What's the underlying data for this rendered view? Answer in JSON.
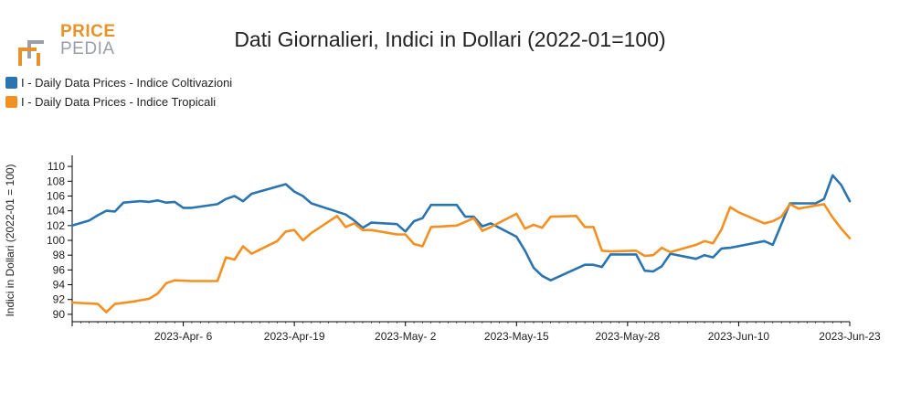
{
  "header": {
    "logo_line1": "PRICE",
    "logo_line2": "PEDIA",
    "title": "Dati Giornalieri, Indici in Dollari (2022-01=100)"
  },
  "colors": {
    "coltivazioni": "#2a75b0",
    "tropicali": "#f39021",
    "logo_orange": "#e8922a",
    "logo_grey": "#9aa0a6"
  },
  "chart_data": {
    "type": "line",
    "title": "Dati Giornalieri, Indici in Dollari (2022-01=100)",
    "xlabel": "",
    "ylabel": "Indici in Dollari (2022-01 = 100)",
    "ylim": [
      89,
      111
    ],
    "yticks": [
      90,
      92,
      94,
      96,
      98,
      100,
      102,
      104,
      106,
      108,
      110
    ],
    "xlim": [
      "2023-03-24",
      "2023-06-23"
    ],
    "xticks": [
      "2023-04-06",
      "2023-04-19",
      "2023-05-02",
      "2023-05-15",
      "2023-05-28",
      "2023-06-10",
      "2023-06-23"
    ],
    "xtick_labels": [
      "2023-Apr- 6",
      "2023-Apr-19",
      "2023-May- 2",
      "2023-May-15",
      "2023-May-28",
      "2023-Jun-10",
      "2023-Jun-23"
    ],
    "legend_position": "top-left",
    "series": [
      {
        "name": "I - Daily Data Prices - Indice Coltivazioni",
        "color": "#2a75b0",
        "points": [
          [
            "2023-03-24",
            102.0
          ],
          [
            "2023-03-26",
            102.7
          ],
          [
            "2023-03-27",
            103.4
          ],
          [
            "2023-03-28",
            104.0
          ],
          [
            "2023-03-29",
            103.9
          ],
          [
            "2023-03-30",
            105.1
          ],
          [
            "2023-04-01",
            105.3
          ],
          [
            "2023-04-02",
            105.2
          ],
          [
            "2023-04-03",
            105.4
          ],
          [
            "2023-04-04",
            105.1
          ],
          [
            "2023-04-05",
            105.2
          ],
          [
            "2023-04-06",
            104.4
          ],
          [
            "2023-04-07",
            104.4
          ],
          [
            "2023-04-10",
            104.9
          ],
          [
            "2023-04-11",
            105.6
          ],
          [
            "2023-04-12",
            106.0
          ],
          [
            "2023-04-13",
            105.3
          ],
          [
            "2023-04-14",
            106.3
          ],
          [
            "2023-04-18",
            107.6
          ],
          [
            "2023-04-19",
            106.6
          ],
          [
            "2023-04-20",
            106.0
          ],
          [
            "2023-04-21",
            105.0
          ],
          [
            "2023-04-25",
            103.5
          ],
          [
            "2023-04-26",
            102.7
          ],
          [
            "2023-04-27",
            101.7
          ],
          [
            "2023-04-28",
            102.4
          ],
          [
            "2023-05-01",
            102.2
          ],
          [
            "2023-05-02",
            101.2
          ],
          [
            "2023-05-03",
            102.6
          ],
          [
            "2023-05-04",
            103.0
          ],
          [
            "2023-05-05",
            104.8
          ],
          [
            "2023-05-08",
            104.8
          ],
          [
            "2023-05-09",
            103.2
          ],
          [
            "2023-05-10",
            103.2
          ],
          [
            "2023-05-11",
            101.9
          ],
          [
            "2023-05-12",
            102.3
          ],
          [
            "2023-05-15",
            100.5
          ],
          [
            "2023-05-16",
            98.6
          ],
          [
            "2023-05-17",
            96.3
          ],
          [
            "2023-05-18",
            95.2
          ],
          [
            "2023-05-19",
            94.6
          ],
          [
            "2023-05-23",
            96.7
          ],
          [
            "2023-05-24",
            96.7
          ],
          [
            "2023-05-25",
            96.4
          ],
          [
            "2023-05-26",
            98.1
          ],
          [
            "2023-05-29",
            98.1
          ],
          [
            "2023-05-30",
            95.9
          ],
          [
            "2023-05-31",
            95.8
          ],
          [
            "2023-06-01",
            96.5
          ],
          [
            "2023-06-02",
            98.2
          ],
          [
            "2023-06-05",
            97.5
          ],
          [
            "2023-06-06",
            98.0
          ],
          [
            "2023-06-07",
            97.7
          ],
          [
            "2023-06-08",
            98.9
          ],
          [
            "2023-06-09",
            99.0
          ],
          [
            "2023-06-13",
            99.9
          ],
          [
            "2023-06-14",
            99.4
          ],
          [
            "2023-06-15",
            102.2
          ],
          [
            "2023-06-16",
            105.0
          ],
          [
            "2023-06-19",
            105.0
          ],
          [
            "2023-06-20",
            105.6
          ],
          [
            "2023-06-21",
            108.8
          ],
          [
            "2023-06-22",
            107.5
          ],
          [
            "2023-06-23",
            105.3
          ]
        ]
      },
      {
        "name": "I - Daily Data Prices - Indice Tropicali",
        "color": "#f39021",
        "points": [
          [
            "2023-03-24",
            91.6
          ],
          [
            "2023-03-27",
            91.4
          ],
          [
            "2023-03-28",
            90.3
          ],
          [
            "2023-03-29",
            91.4
          ],
          [
            "2023-03-31",
            91.7
          ],
          [
            "2023-04-02",
            92.1
          ],
          [
            "2023-04-03",
            92.8
          ],
          [
            "2023-04-04",
            94.2
          ],
          [
            "2023-04-05",
            94.6
          ],
          [
            "2023-04-07",
            94.5
          ],
          [
            "2023-04-10",
            94.5
          ],
          [
            "2023-04-11",
            97.7
          ],
          [
            "2023-04-12",
            97.4
          ],
          [
            "2023-04-13",
            99.2
          ],
          [
            "2023-04-14",
            98.2
          ],
          [
            "2023-04-17",
            99.9
          ],
          [
            "2023-04-18",
            101.2
          ],
          [
            "2023-04-19",
            101.4
          ],
          [
            "2023-04-20",
            100.0
          ],
          [
            "2023-04-21",
            101.0
          ],
          [
            "2023-04-24",
            103.3
          ],
          [
            "2023-04-25",
            101.8
          ],
          [
            "2023-04-26",
            102.3
          ],
          [
            "2023-04-27",
            101.4
          ],
          [
            "2023-04-28",
            101.4
          ],
          [
            "2023-05-01",
            100.8
          ],
          [
            "2023-05-02",
            100.8
          ],
          [
            "2023-05-03",
            99.5
          ],
          [
            "2023-05-04",
            99.2
          ],
          [
            "2023-05-05",
            101.8
          ],
          [
            "2023-05-08",
            102.0
          ],
          [
            "2023-05-09",
            102.5
          ],
          [
            "2023-05-10",
            103.0
          ],
          [
            "2023-05-11",
            101.3
          ],
          [
            "2023-05-12",
            101.8
          ],
          [
            "2023-05-15",
            103.6
          ],
          [
            "2023-05-16",
            101.6
          ],
          [
            "2023-05-17",
            102.1
          ],
          [
            "2023-05-18",
            101.7
          ],
          [
            "2023-05-19",
            103.2
          ],
          [
            "2023-05-22",
            103.3
          ],
          [
            "2023-05-23",
            101.8
          ],
          [
            "2023-05-24",
            101.8
          ],
          [
            "2023-05-25",
            98.6
          ],
          [
            "2023-05-26",
            98.5
          ],
          [
            "2023-05-29",
            98.6
          ],
          [
            "2023-05-30",
            97.9
          ],
          [
            "2023-05-31",
            98.0
          ],
          [
            "2023-06-01",
            99.0
          ],
          [
            "2023-06-02",
            98.4
          ],
          [
            "2023-06-05",
            99.4
          ],
          [
            "2023-06-06",
            99.9
          ],
          [
            "2023-06-07",
            99.6
          ],
          [
            "2023-06-08",
            101.5
          ],
          [
            "2023-06-09",
            104.5
          ],
          [
            "2023-06-10",
            103.8
          ],
          [
            "2023-06-13",
            102.3
          ],
          [
            "2023-06-14",
            102.6
          ],
          [
            "2023-06-15",
            103.2
          ],
          [
            "2023-06-16",
            104.9
          ],
          [
            "2023-06-17",
            104.3
          ],
          [
            "2023-06-20",
            104.9
          ],
          [
            "2023-06-21",
            103.1
          ],
          [
            "2023-06-22",
            101.6
          ],
          [
            "2023-06-23",
            100.3
          ]
        ]
      }
    ]
  }
}
